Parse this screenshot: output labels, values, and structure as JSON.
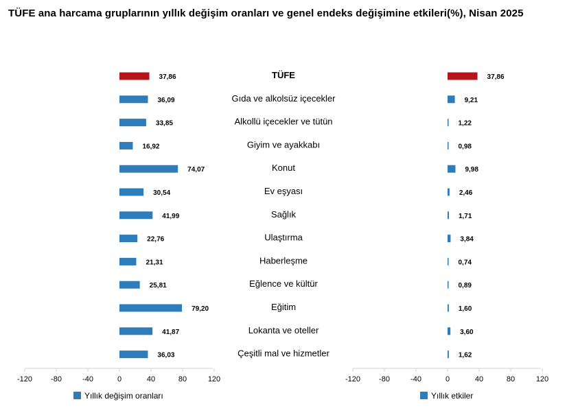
{
  "title": "TÜFE ana harcama gruplarının yıllık değişim oranları ve genel endeks değişimine etkileri(%), Nisan 2025",
  "colors": {
    "tufe": "#b5161b",
    "bar": "#2e7cb9",
    "axis": "#d0d0d0"
  },
  "chart_data": [
    {
      "type": "bar",
      "orientation": "horizontal",
      "categories": [
        "TÜFE",
        "Gıda ve alkolsüz içecekler",
        "Alkollü içecekler ve tütün",
        "Giyim ve ayakkabı",
        "Konut",
        "Ev eşyası",
        "Sağlık",
        "Ulaştırma",
        "Haberleşme",
        "Eğlence ve kültür",
        "Eğitim",
        "Lokanta ve oteller",
        "Çeşitli mal ve hizmetler"
      ],
      "series": [
        {
          "name": "Yıllık değişim oranları",
          "values": [
            37.86,
            36.09,
            33.85,
            16.92,
            74.07,
            30.54,
            41.99,
            22.76,
            21.31,
            25.81,
            79.2,
            41.87,
            36.03
          ],
          "labels": [
            "37,86",
            "36,09",
            "33,85",
            "16,92",
            "74,07",
            "30,54",
            "41,99",
            "22,76",
            "21,31",
            "25,81",
            "79,20",
            "41,87",
            "36,03"
          ]
        }
      ],
      "xlim": [
        -120,
        120
      ],
      "xticks": [
        "-120",
        "-80",
        "-40",
        "0",
        "40",
        "80",
        "120"
      ],
      "legend": "bottom-left",
      "grid": false
    },
    {
      "type": "bar",
      "orientation": "horizontal",
      "categories": [
        "TÜFE",
        "Gıda ve alkolsüz içecekler",
        "Alkollü içecekler ve tütün",
        "Giyim ve ayakkabı",
        "Konut",
        "Ev eşyası",
        "Sağlık",
        "Ulaştırma",
        "Haberleşme",
        "Eğlence ve kültür",
        "Eğitim",
        "Lokanta ve oteller",
        "Çeşitli mal ve hizmetler"
      ],
      "series": [
        {
          "name": "Yıllık etkiler",
          "values": [
            37.86,
            9.21,
            1.22,
            0.98,
            9.98,
            2.46,
            1.71,
            3.84,
            0.74,
            0.89,
            1.6,
            3.6,
            1.62
          ],
          "labels": [
            "37,86",
            "9,21",
            "1,22",
            "0,98",
            "9,98",
            "2,46",
            "1,71",
            "3,84",
            "0,74",
            "0,89",
            "1,60",
            "3,60",
            "1,62"
          ]
        }
      ],
      "xlim": [
        -120,
        120
      ],
      "xticks": [
        "-120",
        "-80",
        "-40",
        "0",
        "40",
        "80",
        "120"
      ],
      "legend": "bottom-left",
      "grid": false
    }
  ]
}
